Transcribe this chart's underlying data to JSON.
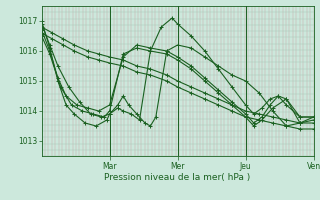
{
  "bg_color": "#cce8dc",
  "grid_color_v": "#c8a8a8",
  "grid_color_h": "#aacaba",
  "line_color": "#1a6020",
  "ylabel_text": "Pression niveau de la mer( hPa )",
  "ylim": [
    1012.5,
    1017.5
  ],
  "yticks": [
    1013,
    1014,
    1015,
    1016,
    1017
  ],
  "day_positions": [
    0.25,
    0.5,
    0.75,
    1.0
  ],
  "day_labels": [
    "Mar",
    "Mer",
    "Jeu",
    "Ven"
  ],
  "series": [
    {
      "x": [
        0.0,
        0.04,
        0.08,
        0.12,
        0.17,
        0.21,
        0.25,
        0.3,
        0.35,
        0.4,
        0.46,
        0.5,
        0.55,
        0.6,
        0.65,
        0.7,
        0.75,
        0.8,
        0.85,
        0.9,
        0.95,
        1.0
      ],
      "y": [
        1016.8,
        1016.6,
        1016.4,
        1016.2,
        1016.0,
        1015.9,
        1015.8,
        1015.7,
        1015.5,
        1015.4,
        1015.2,
        1015.0,
        1014.8,
        1014.6,
        1014.4,
        1014.2,
        1014.0,
        1013.9,
        1013.8,
        1013.7,
        1013.6,
        1013.6
      ]
    },
    {
      "x": [
        0.0,
        0.04,
        0.08,
        0.12,
        0.17,
        0.21,
        0.25,
        0.3,
        0.35,
        0.4,
        0.46,
        0.5,
        0.55,
        0.6,
        0.65,
        0.7,
        0.75,
        0.8,
        0.85,
        0.9,
        0.95,
        1.0
      ],
      "y": [
        1016.6,
        1016.4,
        1016.2,
        1016.0,
        1015.8,
        1015.7,
        1015.6,
        1015.5,
        1015.3,
        1015.2,
        1015.0,
        1014.8,
        1014.6,
        1014.4,
        1014.2,
        1014.0,
        1013.8,
        1013.7,
        1013.6,
        1013.5,
        1013.4,
        1013.4
      ]
    },
    {
      "x": [
        0.0,
        0.03,
        0.06,
        0.1,
        0.14,
        0.18,
        0.22,
        0.25,
        0.28,
        0.3,
        0.32,
        0.35,
        0.38,
        0.4,
        0.42,
        0.46,
        0.5,
        0.55,
        0.6,
        0.65,
        0.7,
        0.75,
        0.8,
        0.85,
        0.9,
        0.95,
        1.0
      ],
      "y": [
        1016.9,
        1016.2,
        1015.5,
        1014.8,
        1014.3,
        1013.9,
        1013.8,
        1013.9,
        1014.2,
        1014.5,
        1014.2,
        1013.9,
        1013.6,
        1013.5,
        1013.8,
        1016.0,
        1016.2,
        1016.1,
        1015.8,
        1015.5,
        1015.2,
        1015.0,
        1014.6,
        1014.0,
        1013.5,
        1013.6,
        1013.8
      ]
    },
    {
      "x": [
        0.0,
        0.03,
        0.06,
        0.09,
        0.12,
        0.16,
        0.2,
        0.24,
        0.25,
        0.28,
        0.3,
        0.33,
        0.36,
        0.4,
        0.44,
        0.48,
        0.5,
        0.55,
        0.6,
        0.65,
        0.7,
        0.75,
        0.78,
        0.81,
        0.84,
        0.87,
        0.9,
        0.95,
        1.0
      ],
      "y": [
        1017.0,
        1016.1,
        1015.0,
        1014.2,
        1013.9,
        1013.6,
        1013.5,
        1013.7,
        1013.9,
        1014.1,
        1014.0,
        1013.9,
        1013.7,
        1016.0,
        1016.8,
        1017.1,
        1016.9,
        1016.5,
        1016.0,
        1015.4,
        1014.8,
        1014.2,
        1013.9,
        1014.1,
        1014.4,
        1014.5,
        1014.2,
        1013.8,
        1013.8
      ]
    },
    {
      "x": [
        0.0,
        0.03,
        0.06,
        0.09,
        0.13,
        0.17,
        0.21,
        0.25,
        0.3,
        0.35,
        0.4,
        0.46,
        0.5,
        0.55,
        0.6,
        0.65,
        0.7,
        0.75,
        0.78,
        0.81,
        0.84,
        0.87,
        0.9,
        0.95,
        1.0
      ],
      "y": [
        1016.7,
        1016.0,
        1015.1,
        1014.5,
        1014.2,
        1014.1,
        1014.0,
        1014.2,
        1015.8,
        1016.2,
        1016.1,
        1016.0,
        1015.8,
        1015.5,
        1015.1,
        1014.7,
        1014.3,
        1013.9,
        1013.6,
        1013.8,
        1014.2,
        1014.5,
        1014.4,
        1013.8,
        1013.8
      ]
    },
    {
      "x": [
        0.0,
        0.03,
        0.07,
        0.11,
        0.15,
        0.19,
        0.23,
        0.25,
        0.3,
        0.35,
        0.4,
        0.46,
        0.5,
        0.55,
        0.6,
        0.65,
        0.7,
        0.75,
        0.78,
        0.81,
        0.85,
        0.9,
        0.95,
        1.0
      ],
      "y": [
        1016.5,
        1015.9,
        1014.8,
        1014.2,
        1014.0,
        1013.9,
        1013.8,
        1014.0,
        1015.9,
        1016.1,
        1016.0,
        1015.9,
        1015.7,
        1015.4,
        1015.0,
        1014.6,
        1014.2,
        1013.8,
        1013.5,
        1013.7,
        1014.1,
        1014.4,
        1013.6,
        1013.7
      ]
    }
  ]
}
